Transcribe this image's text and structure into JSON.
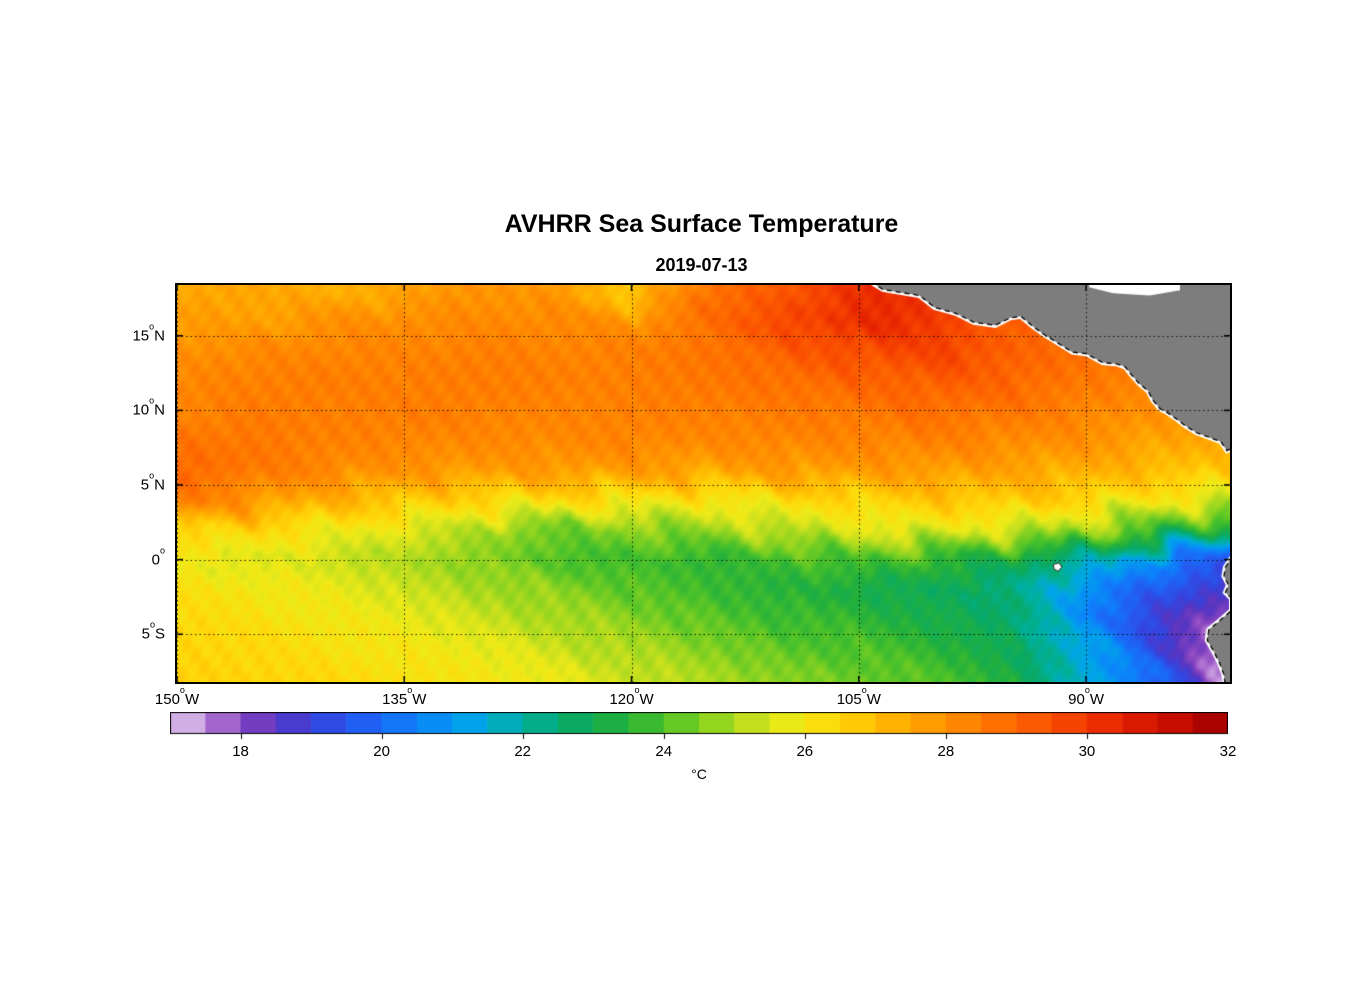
{
  "chart_data": {
    "type": "heatmap",
    "title": "AVHRR Sea Surface Temperature",
    "subtitle": "2019-07-13",
    "xlabel": "",
    "ylabel": "",
    "colorbar_label": "°C",
    "deg_mark": "o",
    "lon_range": [
      -150,
      -80.5
    ],
    "lat_range": [
      18.4,
      -8.2
    ],
    "x_axis": {
      "ticks": [
        {
          "lon": -150,
          "num": "150",
          "hem": "W"
        },
        {
          "lon": -135,
          "num": "135",
          "hem": "W"
        },
        {
          "lon": -120,
          "num": "120",
          "hem": "W"
        },
        {
          "lon": -105,
          "num": "105",
          "hem": "W"
        },
        {
          "lon": -90,
          "num": "90",
          "hem": "W"
        }
      ]
    },
    "y_axis": {
      "ticks": [
        {
          "lat": 15,
          "num": "15",
          "hem": "N"
        },
        {
          "lat": 10,
          "num": "10",
          "hem": "N"
        },
        {
          "lat": 5,
          "num": "5",
          "hem": "N"
        },
        {
          "lat": 0,
          "num": "0",
          "hem": ""
        },
        {
          "lat": -5,
          "num": "5",
          "hem": "S"
        }
      ]
    },
    "colorbar": {
      "min": 17,
      "max": 32,
      "bin": 0.5,
      "ticks": [
        18,
        20,
        22,
        24,
        26,
        28,
        30,
        32
      ]
    },
    "colormap": [
      [
        17.0,
        "#e6d5ee"
      ],
      [
        17.5,
        "#bc87d8"
      ],
      [
        18.0,
        "#8a46c0"
      ],
      [
        18.5,
        "#5a35c0"
      ],
      [
        19.0,
        "#3742dc"
      ],
      [
        19.8,
        "#1f62f5"
      ],
      [
        20.6,
        "#0b86fa"
      ],
      [
        21.3,
        "#00a5e8"
      ],
      [
        22.0,
        "#00b0a0"
      ],
      [
        22.7,
        "#0aaa64"
      ],
      [
        23.4,
        "#23b03c"
      ],
      [
        24.0,
        "#4cc229"
      ],
      [
        24.7,
        "#90d420"
      ],
      [
        25.3,
        "#c8e01d"
      ],
      [
        25.8,
        "#eeea18"
      ],
      [
        26.4,
        "#ffd90a"
      ],
      [
        27.2,
        "#ffb501"
      ],
      [
        28.0,
        "#ff9100"
      ],
      [
        28.8,
        "#fe6e00"
      ],
      [
        29.6,
        "#f94b00"
      ],
      [
        30.4,
        "#e82500"
      ],
      [
        31.2,
        "#c90e00"
      ],
      [
        32.0,
        "#9e0000"
      ]
    ],
    "land_color": "#7d7d7d",
    "coast_fringe_color": "#ffffff",
    "grid": {
      "lons": [
        -150,
        -145,
        -140,
        -135,
        -130,
        -125,
        -120,
        -115,
        -110,
        -105,
        -100,
        -95,
        -90,
        -85,
        -81
      ],
      "lats": [
        18,
        16,
        14,
        12,
        10,
        8,
        6,
        4,
        2,
        0,
        -2,
        -4,
        -6,
        -8
      ],
      "sst": [
        [
          27.4,
          27.6,
          27.3,
          27.6,
          28.0,
          27.8,
          26.6,
          28.6,
          29.4,
          30.2,
          30.3,
          29.6,
          29.0,
          28.8,
          28.8
        ],
        [
          27.8,
          27.6,
          28.0,
          28.1,
          28.2,
          28.2,
          28.0,
          28.8,
          29.6,
          30.4,
          30.0,
          29.2,
          28.8,
          28.6,
          28.6
        ],
        [
          28.0,
          28.2,
          28.3,
          28.3,
          28.4,
          28.3,
          28.4,
          28.7,
          29.1,
          29.6,
          29.8,
          29.2,
          28.8,
          28.5,
          28.4
        ],
        [
          28.2,
          28.4,
          28.5,
          28.4,
          28.5,
          28.4,
          28.4,
          28.6,
          28.8,
          29.0,
          29.2,
          29.0,
          28.6,
          28.2,
          28.0
        ],
        [
          28.3,
          28.5,
          28.4,
          28.5,
          28.4,
          28.3,
          28.4,
          28.4,
          28.5,
          28.6,
          28.8,
          28.6,
          28.3,
          28.0,
          27.8
        ],
        [
          28.6,
          28.6,
          28.4,
          28.3,
          28.2,
          28.2,
          28.3,
          28.2,
          28.3,
          28.3,
          28.4,
          28.2,
          28.0,
          27.6,
          27.4
        ],
        [
          29.0,
          28.6,
          28.2,
          28.0,
          27.8,
          27.8,
          27.8,
          27.6,
          27.8,
          27.8,
          27.8,
          27.6,
          27.4,
          27.0,
          26.8
        ],
        [
          28.5,
          28.0,
          27.3,
          26.8,
          26.5,
          26.3,
          26.2,
          26.0,
          26.3,
          26.5,
          26.8,
          26.8,
          26.5,
          26.0,
          25.5
        ],
        [
          26.6,
          26.4,
          26.0,
          25.6,
          25.0,
          24.4,
          24.6,
          24.8,
          25.2,
          25.6,
          25.8,
          25.4,
          24.8,
          24.0,
          23.2
        ],
        [
          25.8,
          25.6,
          25.4,
          25.0,
          24.6,
          24.0,
          23.8,
          23.6,
          23.8,
          24.0,
          23.6,
          23.2,
          22.0,
          20.4,
          19.8
        ],
        [
          26.2,
          26.0,
          25.8,
          25.4,
          25.0,
          24.6,
          24.2,
          23.8,
          23.4,
          23.2,
          22.8,
          22.4,
          21.0,
          19.4,
          18.4
        ],
        [
          26.4,
          26.2,
          26.0,
          25.8,
          25.4,
          25.0,
          24.6,
          24.2,
          23.8,
          23.6,
          23.2,
          22.6,
          20.6,
          19.0,
          17.8
        ],
        [
          26.5,
          26.4,
          26.2,
          26.0,
          25.8,
          25.4,
          25.0,
          24.6,
          24.2,
          24.0,
          23.6,
          23.0,
          21.2,
          19.0,
          17.6
        ],
        [
          26.6,
          26.5,
          26.4,
          26.2,
          26.0,
          25.8,
          25.4,
          25.0,
          24.6,
          24.4,
          24.0,
          23.4,
          21.6,
          19.6,
          17.4
        ]
      ]
    },
    "land": {
      "central_america": [
        [
          -104.2,
          18.6
        ],
        [
          -103.4,
          18.1
        ],
        [
          -102.2,
          17.9
        ],
        [
          -101.0,
          17.7
        ],
        [
          -100.0,
          16.9
        ],
        [
          -98.6,
          16.5
        ],
        [
          -97.4,
          15.9
        ],
        [
          -96.0,
          15.7
        ],
        [
          -95.0,
          16.2
        ],
        [
          -94.3,
          16.3
        ],
        [
          -93.6,
          15.7
        ],
        [
          -92.8,
          15.1
        ],
        [
          -92.0,
          14.6
        ],
        [
          -90.9,
          13.9
        ],
        [
          -90.0,
          13.8
        ],
        [
          -88.9,
          13.2
        ],
        [
          -87.9,
          13.1
        ],
        [
          -87.4,
          12.9
        ],
        [
          -87.1,
          12.5
        ],
        [
          -86.5,
          11.8
        ],
        [
          -85.9,
          11.3
        ],
        [
          -85.6,
          10.7
        ],
        [
          -85.1,
          10.1
        ],
        [
          -84.7,
          9.9
        ],
        [
          -84.0,
          9.4
        ],
        [
          -83.5,
          9.0
        ],
        [
          -82.7,
          8.5
        ],
        [
          -81.9,
          8.2
        ],
        [
          -81.1,
          7.9
        ],
        [
          -80.7,
          7.3
        ],
        [
          -80.1,
          7.6
        ],
        [
          -79.2,
          8.3
        ],
        [
          -78.2,
          8.5
        ],
        [
          -77.5,
          9.5
        ],
        [
          -77.5,
          19.2
        ],
        [
          -104.2,
          19.2
        ]
      ],
      "south_america": [
        [
          -79.6,
          1.2
        ],
        [
          -80.1,
          0.7
        ],
        [
          -80.4,
          0.1
        ],
        [
          -80.8,
          -0.5
        ],
        [
          -80.9,
          -1.1
        ],
        [
          -80.6,
          -1.7
        ],
        [
          -80.8,
          -2.2
        ],
        [
          -80.4,
          -2.6
        ],
        [
          -80.4,
          -3.4
        ],
        [
          -81.3,
          -4.2
        ],
        [
          -81.9,
          -4.7
        ],
        [
          -82.0,
          -5.4
        ],
        [
          -81.6,
          -6.1
        ],
        [
          -81.2,
          -6.9
        ],
        [
          -80.9,
          -7.7
        ],
        [
          -80.8,
          -8.6
        ],
        [
          -77.0,
          -8.6
        ],
        [
          -77.0,
          1.8
        ]
      ],
      "galapagos": [
        [
          -92.15,
          -0.32
        ],
        [
          -91.78,
          -0.22
        ],
        [
          -91.6,
          -0.5
        ],
        [
          -91.85,
          -0.78
        ],
        [
          -92.12,
          -0.62
        ]
      ],
      "no_data_white": [
        [
          -89.8,
          18.6
        ],
        [
          -83.8,
          18.6
        ],
        [
          -83.8,
          18.05
        ],
        [
          -85.8,
          17.7
        ],
        [
          -88.2,
          17.85
        ],
        [
          -89.8,
          18.25
        ]
      ]
    }
  }
}
